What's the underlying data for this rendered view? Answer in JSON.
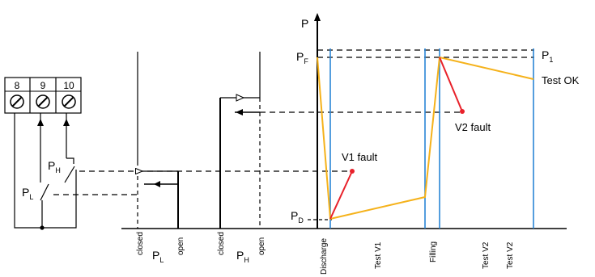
{
  "terminals": [
    "8",
    "9",
    "10"
  ],
  "switch_labels": {
    "ph": {
      "main": "P",
      "sub": "H"
    },
    "pl": {
      "main": "P",
      "sub": "L"
    }
  },
  "pressure_switch_axes": {
    "pl": {
      "closed": "closed",
      "open": "open",
      "label_main": "P",
      "label_sub": "L"
    },
    "ph": {
      "closed": "closed",
      "open": "open",
      "label_main": "P",
      "label_sub": "H"
    }
  },
  "graph": {
    "y_axis_label": "P",
    "levels": {
      "pf": {
        "main": "P",
        "sub": "F"
      },
      "p1": {
        "main": "P",
        "sub": "1"
      },
      "pd": {
        "main": "P",
        "sub": "D"
      }
    },
    "phases": [
      "Discharge",
      "Test V1",
      "Filling",
      "Test V2",
      "Test V2"
    ],
    "annotations": {
      "v1_fault": "V1 fault",
      "v2_fault": "V2 fault",
      "test_ok": "Test OK"
    }
  },
  "colors": {
    "ok_trace": "#f5b21b",
    "fault_trace": "#e8212a",
    "phase_line": "#2a86d6",
    "line": "#000000"
  }
}
